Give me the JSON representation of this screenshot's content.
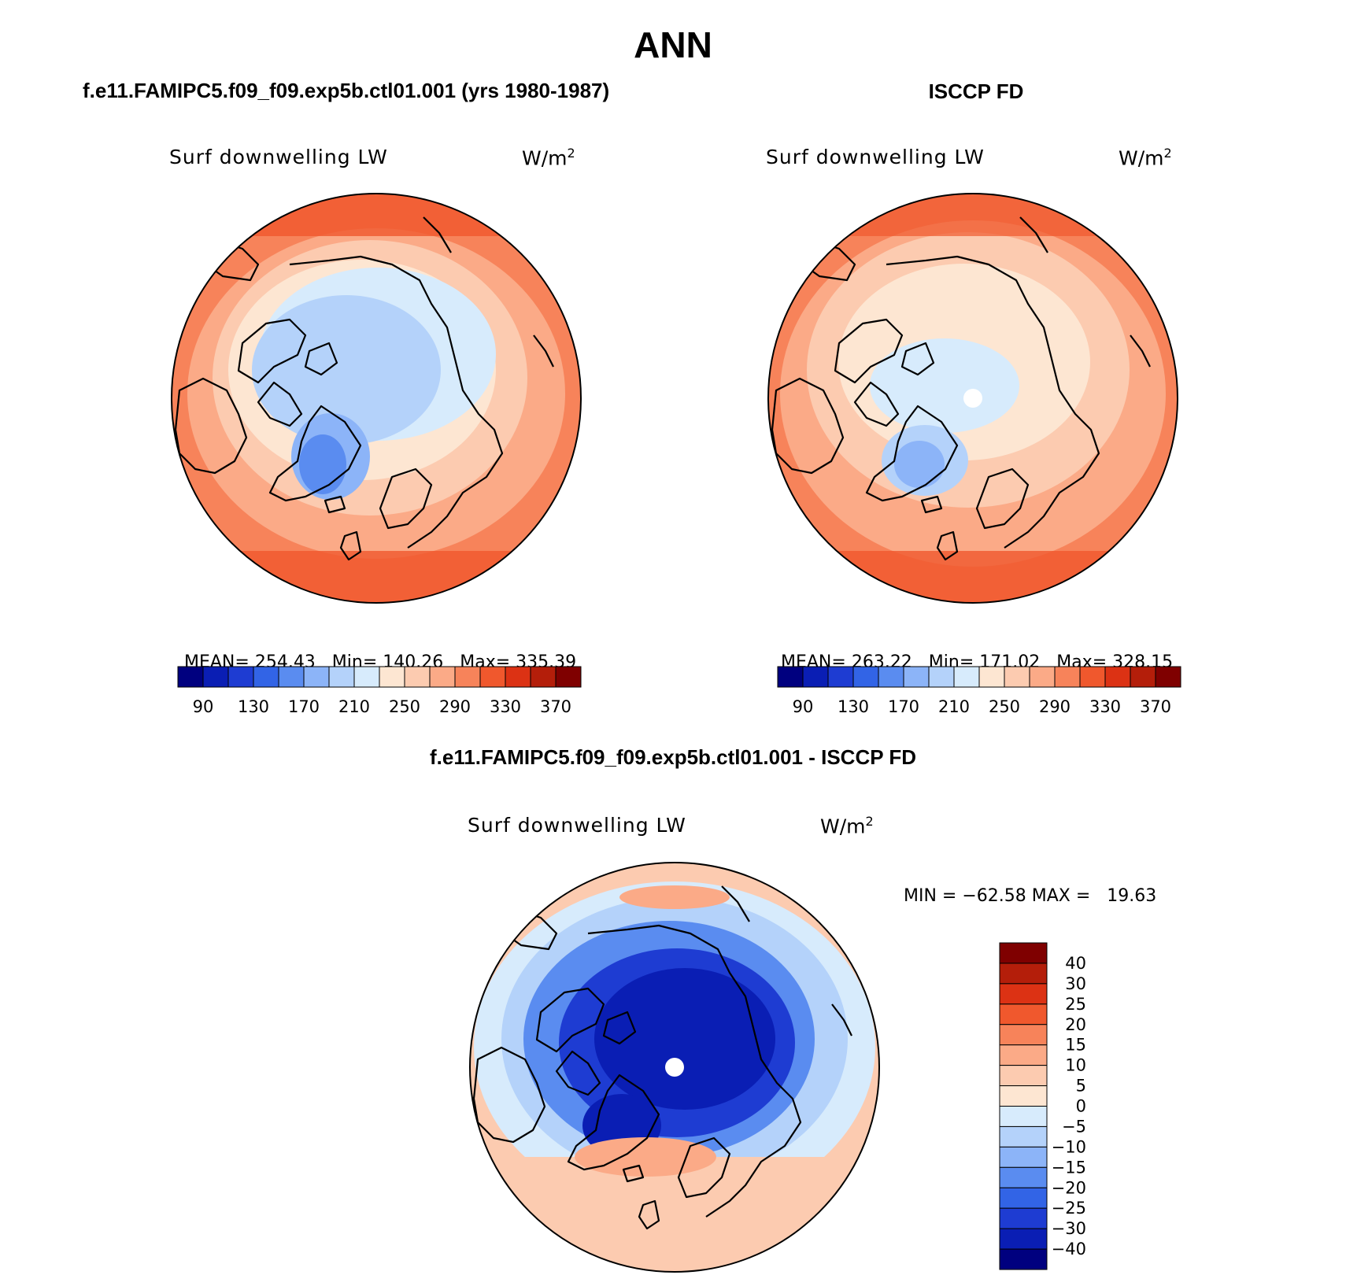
{
  "page_title": "ANN",
  "panels": [
    {
      "header": "f.e11.FAMIPC5.f09_f09.exp5b.ctl01.001 (yrs 1980-1987)",
      "variable": "Surf downwelling LW",
      "units": "W/m",
      "units_sup": "2",
      "stats": {
        "mean_label": "MEAN=",
        "mean": "254.43",
        "min_label": "Min=",
        "min": "140.26",
        "max_label": "Max=",
        "max": "335.39"
      }
    },
    {
      "header": "ISCCP FD",
      "variable": "Surf downwelling LW",
      "units": "W/m",
      "units_sup": "2",
      "stats": {
        "mean_label": "MEAN=",
        "mean": "263.22",
        "min_label": "Min=",
        "min": "171.02",
        "max_label": "Max=",
        "max": "328.15"
      }
    },
    {
      "header": "f.e11.FAMIPC5.f09_f09.exp5b.ctl01.001 - ISCCP FD",
      "variable": "Surf downwelling LW",
      "units": "W/m",
      "units_sup": "2",
      "minmax_text": "MIN = −62.58 MAX =   19.63"
    }
  ],
  "field_colorbar": {
    "colors": [
      "#00007f",
      "#0a1eb4",
      "#1e3cd2",
      "#3264e6",
      "#5a8cf0",
      "#8cb4f8",
      "#b4d2fa",
      "#d7ebfc",
      "#fde6d2",
      "#fccbb0",
      "#fbaa87",
      "#f7835a",
      "#f0582d",
      "#dc3214",
      "#b41e0a",
      "#7f0000"
    ],
    "tick_labels": [
      "90",
      "130",
      "170",
      "210",
      "250",
      "290",
      "330",
      "370"
    ]
  },
  "diff_colorbar": {
    "colors": [
      "#00007f",
      "#0a1eb4",
      "#1e3cd2",
      "#3264e6",
      "#5a8cf0",
      "#8cb4f8",
      "#b4d2fa",
      "#d7ebfc",
      "#fde6d2",
      "#fccbb0",
      "#fbaa87",
      "#f7835a",
      "#f0582d",
      "#dc3214",
      "#b41e0a",
      "#7f0000"
    ],
    "tick_labels": [
      "40",
      "30",
      "25",
      "20",
      "15",
      "10",
      "5",
      "0",
      "−5",
      "−10",
      "−15",
      "−20",
      "−25",
      "−30",
      "−40"
    ]
  },
  "map_colors": {
    "ocean_warm_dark": "#f0582d",
    "ocean_warm": "#f7835a",
    "warm_mid": "#fbaa87",
    "warm_light": "#fccbb0",
    "warm_pale": "#fde6d2",
    "cool_pale": "#d7ebfc",
    "cool_light": "#b4d2fa",
    "cool_mid": "#8cb4f8",
    "cool": "#5a8cf0",
    "deep_blue": "#1e3cd2",
    "navy": "#0a1eb4",
    "coast": "#000000"
  }
}
